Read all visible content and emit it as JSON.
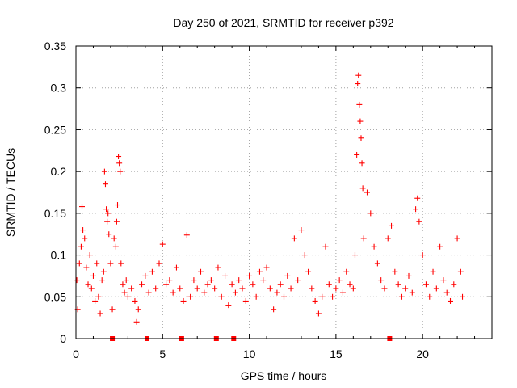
{
  "chart_data": {
    "type": "scatter",
    "title": "Day 250 of 2021, SRMTID for receiver p392",
    "xlabel": "GPS time / hours",
    "ylabel": "SRMTID / TECUs",
    "xlim": [
      0,
      24
    ],
    "ylim": [
      0,
      0.35
    ],
    "xticks": [
      0,
      5,
      10,
      15,
      20
    ],
    "xtick_labels": [
      "0",
      "5",
      "10",
      "15",
      "20"
    ],
    "yticks": [
      0,
      0.05,
      0.1,
      0.15,
      0.2,
      0.25,
      0.3,
      0.35
    ],
    "ytick_labels": [
      "0",
      "0.05",
      "0.1",
      "0.15",
      "0.2",
      "0.25",
      "0.3",
      "0.35"
    ],
    "grid": true,
    "marker": "+",
    "color": "#ff0000",
    "series": [
      {
        "name": "SRMTID p392",
        "points": [
          [
            0.05,
            0.07
          ],
          [
            0.1,
            0.035
          ],
          [
            0.2,
            0.09
          ],
          [
            0.3,
            0.11
          ],
          [
            0.35,
            0.158
          ],
          [
            0.4,
            0.13
          ],
          [
            0.5,
            0.12
          ],
          [
            0.6,
            0.085
          ],
          [
            0.7,
            0.065
          ],
          [
            0.8,
            0.1
          ],
          [
            0.9,
            0.06
          ],
          [
            1.0,
            0.075
          ],
          [
            1.1,
            0.045
          ],
          [
            1.2,
            0.09
          ],
          [
            1.3,
            0.05
          ],
          [
            1.4,
            0.03
          ],
          [
            1.5,
            0.07
          ],
          [
            1.6,
            0.08
          ],
          [
            1.65,
            0.2
          ],
          [
            1.7,
            0.185
          ],
          [
            1.75,
            0.155
          ],
          [
            1.8,
            0.14
          ],
          [
            1.85,
            0.15
          ],
          [
            1.9,
            0.125
          ],
          [
            2.0,
            0.09
          ],
          [
            2.1,
            0.035
          ],
          [
            2.2,
            0.12
          ],
          [
            2.3,
            0.11
          ],
          [
            2.35,
            0.14
          ],
          [
            2.4,
            0.16
          ],
          [
            2.45,
            0.218
          ],
          [
            2.5,
            0.21
          ],
          [
            2.55,
            0.2
          ],
          [
            2.6,
            0.09
          ],
          [
            2.7,
            0.065
          ],
          [
            2.8,
            0.055
          ],
          [
            2.9,
            0.07
          ],
          [
            3.0,
            0.05
          ],
          [
            3.2,
            0.06
          ],
          [
            3.4,
            0.045
          ],
          [
            3.5,
            0.02
          ],
          [
            3.6,
            0.035
          ],
          [
            3.8,
            0.065
          ],
          [
            4.0,
            0.075
          ],
          [
            4.2,
            0.055
          ],
          [
            4.4,
            0.08
          ],
          [
            4.6,
            0.06
          ],
          [
            4.8,
            0.09
          ],
          [
            5.0,
            0.113
          ],
          [
            5.2,
            0.065
          ],
          [
            5.4,
            0.07
          ],
          [
            5.6,
            0.055
          ],
          [
            5.8,
            0.085
          ],
          [
            6.0,
            0.06
          ],
          [
            6.2,
            0.045
          ],
          [
            6.4,
            0.124
          ],
          [
            6.6,
            0.05
          ],
          [
            6.8,
            0.07
          ],
          [
            7.0,
            0.06
          ],
          [
            7.2,
            0.08
          ],
          [
            7.4,
            0.055
          ],
          [
            7.6,
            0.065
          ],
          [
            7.8,
            0.07
          ],
          [
            8.0,
            0.06
          ],
          [
            8.2,
            0.085
          ],
          [
            8.4,
            0.05
          ],
          [
            8.6,
            0.075
          ],
          [
            8.8,
            0.04
          ],
          [
            9.0,
            0.065
          ],
          [
            9.2,
            0.055
          ],
          [
            9.4,
            0.07
          ],
          [
            9.6,
            0.06
          ],
          [
            9.8,
            0.045
          ],
          [
            10.0,
            0.075
          ],
          [
            10.2,
            0.065
          ],
          [
            10.4,
            0.05
          ],
          [
            10.6,
            0.08
          ],
          [
            10.8,
            0.07
          ],
          [
            11.0,
            0.085
          ],
          [
            11.2,
            0.06
          ],
          [
            11.4,
            0.035
          ],
          [
            11.6,
            0.055
          ],
          [
            11.8,
            0.065
          ],
          [
            12.0,
            0.05
          ],
          [
            12.2,
            0.075
          ],
          [
            12.4,
            0.06
          ],
          [
            12.6,
            0.12
          ],
          [
            12.8,
            0.07
          ],
          [
            13.0,
            0.13
          ],
          [
            13.2,
            0.1
          ],
          [
            13.4,
            0.08
          ],
          [
            13.6,
            0.06
          ],
          [
            13.8,
            0.045
          ],
          [
            14.0,
            0.03
          ],
          [
            14.2,
            0.05
          ],
          [
            14.4,
            0.11
          ],
          [
            14.6,
            0.065
          ],
          [
            14.8,
            0.05
          ],
          [
            15.0,
            0.06
          ],
          [
            15.2,
            0.07
          ],
          [
            15.4,
            0.055
          ],
          [
            15.6,
            0.08
          ],
          [
            15.8,
            0.065
          ],
          [
            16.0,
            0.06
          ],
          [
            16.1,
            0.1
          ],
          [
            16.2,
            0.22
          ],
          [
            16.25,
            0.305
          ],
          [
            16.3,
            0.315
          ],
          [
            16.35,
            0.28
          ],
          [
            16.4,
            0.26
          ],
          [
            16.45,
            0.24
          ],
          [
            16.5,
            0.21
          ],
          [
            16.55,
            0.18
          ],
          [
            16.6,
            0.12
          ],
          [
            16.8,
            0.175
          ],
          [
            17.0,
            0.15
          ],
          [
            17.2,
            0.11
          ],
          [
            17.4,
            0.09
          ],
          [
            17.6,
            0.07
          ],
          [
            17.8,
            0.06
          ],
          [
            18.0,
            0.12
          ],
          [
            18.2,
            0.135
          ],
          [
            18.4,
            0.08
          ],
          [
            18.6,
            0.065
          ],
          [
            18.8,
            0.05
          ],
          [
            19.0,
            0.06
          ],
          [
            19.2,
            0.075
          ],
          [
            19.4,
            0.055
          ],
          [
            19.6,
            0.155
          ],
          [
            19.7,
            0.168
          ],
          [
            19.8,
            0.14
          ],
          [
            20.0,
            0.1
          ],
          [
            20.2,
            0.065
          ],
          [
            20.4,
            0.05
          ],
          [
            20.6,
            0.08
          ],
          [
            20.8,
            0.06
          ],
          [
            21.0,
            0.11
          ],
          [
            21.2,
            0.07
          ],
          [
            21.4,
            0.055
          ],
          [
            21.6,
            0.045
          ],
          [
            21.8,
            0.065
          ],
          [
            22.0,
            0.12
          ],
          [
            22.2,
            0.08
          ],
          [
            22.3,
            0.05
          ]
        ]
      }
    ],
    "zero_markers": [
      2.1,
      4.1,
      6.1,
      8.1,
      9.1,
      18.1
    ]
  }
}
